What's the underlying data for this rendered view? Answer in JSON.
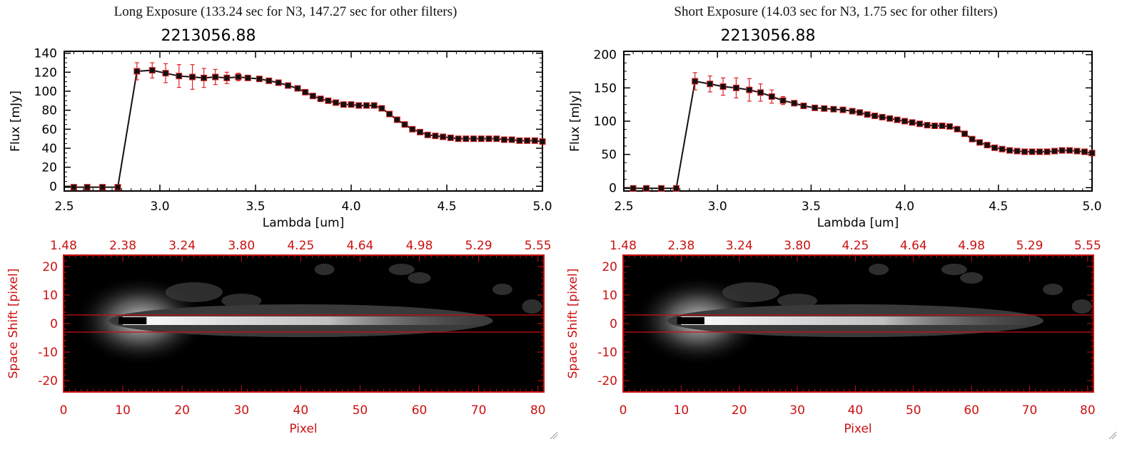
{
  "colors": {
    "axis_black": "#000000",
    "axis_red": "#cc1111",
    "errorbar": "#dd2222",
    "marker": "#111111",
    "cut_line": "#cc1111",
    "image_bg": "#000000"
  },
  "icons": [
    "resize-grip-icon"
  ],
  "panels": [
    {
      "header": "Long Exposure (133.24 sec for N3, 147.27 sec for other filters)",
      "image_top_ticks": [
        "1.48",
        "2.38",
        "3.24",
        "3.80",
        "4.25",
        "4.64",
        "4.98",
        "5.29",
        "5.55"
      ],
      "image_x_ticks": [
        "0",
        "10",
        "20",
        "30",
        "40",
        "50",
        "60",
        "70",
        "80"
      ],
      "image_y_ticks": [
        "20",
        "10",
        "0",
        "-10",
        "-20"
      ],
      "image_xlabel": "Pixel",
      "image_ylabel": "Space Shift [pixel]"
    },
    {
      "header": "Short Exposure (14.03 sec for N3, 1.75 sec for other filters)",
      "image_top_ticks": [
        "1.48",
        "2.38",
        "3.24",
        "3.80",
        "4.25",
        "4.64",
        "4.98",
        "5.29",
        "5.55"
      ],
      "image_x_ticks": [
        "0",
        "10",
        "20",
        "30",
        "40",
        "50",
        "60",
        "70",
        "80"
      ],
      "image_y_ticks": [
        "20",
        "10",
        "0",
        "-10",
        "-20"
      ],
      "image_xlabel": "Pixel",
      "image_ylabel": "Space Shift [pixel]"
    }
  ],
  "chart_data": [
    {
      "type": "line",
      "title": "2213056.88",
      "xlabel": "Lambda [um]",
      "ylabel": "Flux [mJy]",
      "xlim": [
        2.5,
        5.0
      ],
      "ylim": [
        -5,
        142
      ],
      "x_ticks": [
        "2.5",
        "3.0",
        "3.5",
        "4.0",
        "4.5",
        "5.0"
      ],
      "y_ticks": [
        "0",
        "20",
        "40",
        "60",
        "80",
        "100",
        "120",
        "140"
      ],
      "grid": false,
      "series": [
        {
          "x": [
            2.55,
            2.62,
            2.7,
            2.78,
            2.88,
            2.96,
            3.03,
            3.1,
            3.17,
            3.23,
            3.29,
            3.35,
            3.41,
            3.46,
            3.52,
            3.57,
            3.62,
            3.67,
            3.72,
            3.76,
            3.8,
            3.84,
            3.88,
            3.92,
            3.96,
            4.0,
            4.04,
            4.08,
            4.12,
            4.16,
            4.2,
            4.24,
            4.28,
            4.32,
            4.36,
            4.4,
            4.44,
            4.48,
            4.52,
            4.56,
            4.6,
            4.64,
            4.68,
            4.72,
            4.76,
            4.8,
            4.84,
            4.88,
            4.92,
            4.96,
            5.0
          ],
          "y": [
            -1,
            -1,
            -1,
            -1,
            121,
            122,
            119,
            116,
            115,
            114,
            115,
            114,
            115,
            114,
            113,
            111,
            109,
            106,
            103,
            99,
            95,
            92,
            90,
            88,
            86,
            86,
            85,
            85,
            85,
            82,
            76,
            70,
            65,
            60,
            57,
            54,
            53,
            52,
            51,
            50,
            50,
            50,
            50,
            50,
            50,
            49,
            49,
            48,
            48,
            48,
            47
          ],
          "err": [
            0,
            0,
            0,
            0,
            9,
            8,
            10,
            12,
            13,
            10,
            8,
            6,
            4,
            2,
            2,
            2,
            2,
            2,
            2,
            2,
            2,
            2,
            2,
            2,
            2,
            2,
            2,
            2,
            2,
            2,
            2,
            2,
            2,
            2,
            2,
            2,
            2,
            2,
            2,
            2,
            2,
            2,
            2,
            2,
            2,
            2,
            2,
            2,
            2,
            2,
            2
          ]
        }
      ]
    },
    {
      "type": "line",
      "title": "2213056.88",
      "xlabel": "Lambda [um]",
      "ylabel": "Flux [mJy]",
      "xlim": [
        2.5,
        5.0
      ],
      "ylim": [
        -5,
        205
      ],
      "x_ticks": [
        "2.5",
        "3.0",
        "3.5",
        "4.0",
        "4.5",
        "5.0"
      ],
      "y_ticks": [
        "0",
        "50",
        "100",
        "150",
        "200"
      ],
      "grid": false,
      "series": [
        {
          "x": [
            2.55,
            2.62,
            2.7,
            2.78,
            2.88,
            2.96,
            3.03,
            3.1,
            3.17,
            3.23,
            3.29,
            3.35,
            3.41,
            3.46,
            3.52,
            3.57,
            3.62,
            3.67,
            3.72,
            3.76,
            3.8,
            3.84,
            3.88,
            3.92,
            3.96,
            4.0,
            4.04,
            4.08,
            4.12,
            4.16,
            4.2,
            4.24,
            4.28,
            4.32,
            4.36,
            4.4,
            4.44,
            4.48,
            4.52,
            4.56,
            4.6,
            4.64,
            4.68,
            4.72,
            4.76,
            4.8,
            4.84,
            4.88,
            4.92,
            4.96,
            5.0
          ],
          "y": [
            -1,
            -1,
            -1,
            -1,
            160,
            156,
            152,
            150,
            147,
            143,
            137,
            131,
            127,
            123,
            120,
            119,
            118,
            117,
            115,
            113,
            110,
            108,
            106,
            104,
            102,
            100,
            98,
            96,
            94,
            93,
            93,
            92,
            88,
            81,
            73,
            68,
            64,
            60,
            58,
            56,
            55,
            54,
            54,
            54,
            54,
            55,
            56,
            56,
            55,
            54,
            52
          ],
          "err": [
            0,
            0,
            0,
            0,
            13,
            12,
            13,
            15,
            17,
            13,
            10,
            6,
            4,
            2,
            2,
            2,
            2,
            2,
            2,
            2,
            2,
            2,
            2,
            2,
            2,
            2,
            2,
            2,
            2,
            2,
            2,
            2,
            2,
            2,
            2,
            2,
            2,
            2,
            2,
            2,
            2,
            2,
            2,
            2,
            2,
            2,
            2,
            2,
            2,
            2,
            2
          ]
        }
      ]
    }
  ]
}
